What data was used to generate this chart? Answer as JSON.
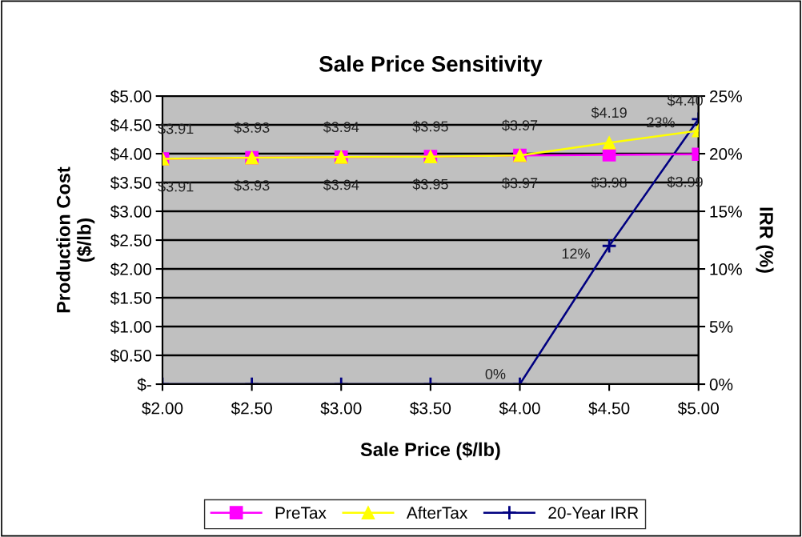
{
  "chart_data": {
    "type": "line",
    "title": "Sale Price Sensitivity",
    "xlabel": "Sale Price ($/lb)",
    "ylabel": "Production Cost\n($/lb)",
    "y2label": "IRR (%)",
    "categories": [
      "$2.00",
      "$2.50",
      "$3.00",
      "$3.50",
      "$4.00",
      "$4.50",
      "$5.00"
    ],
    "series": [
      {
        "name": "PreTax",
        "color": "#ff00ff",
        "marker": "square",
        "values": [
          3.91,
          3.93,
          3.94,
          3.95,
          3.97,
          3.98,
          3.99
        ],
        "value_labels": [
          "$3.91",
          "$3.93",
          "$3.94",
          "$3.95",
          "$3.97",
          "$3.98",
          "$3.99"
        ]
      },
      {
        "name": "AfterTax",
        "color": "#ffff00",
        "marker": "triangle",
        "values": [
          3.91,
          3.93,
          3.94,
          3.95,
          3.97,
          4.19,
          4.4
        ],
        "value_labels": [
          "$3.91",
          "$3.93",
          "$3.94",
          "$3.95",
          "$3.97",
          "$4.19",
          "$4.40"
        ]
      },
      {
        "name": "20-Year IRR",
        "color": "#000080",
        "marker": "cross",
        "axis": "y2",
        "values": [
          0,
          0,
          0,
          0,
          0,
          12,
          23
        ],
        "value_labels": [
          null,
          null,
          null,
          null,
          "0%",
          "12%",
          "23%"
        ]
      }
    ],
    "ylim": [
      0,
      5
    ],
    "yticks": [
      {
        "value": 0,
        "label": "$-"
      },
      {
        "value": 0.5,
        "label": "$0.50"
      },
      {
        "value": 1,
        "label": "$1.00"
      },
      {
        "value": 1.5,
        "label": "$1.50"
      },
      {
        "value": 2,
        "label": "$2.00"
      },
      {
        "value": 2.5,
        "label": "$2.50"
      },
      {
        "value": 3,
        "label": "$3.00"
      },
      {
        "value": 3.5,
        "label": "$3.50"
      },
      {
        "value": 4,
        "label": "$4.00"
      },
      {
        "value": 4.5,
        "label": "$4.50"
      },
      {
        "value": 5,
        "label": "$5.00"
      }
    ],
    "y2lim": [
      0,
      25
    ],
    "y2ticks": [
      {
        "value": 0,
        "label": "0%"
      },
      {
        "value": 5,
        "label": "5%"
      },
      {
        "value": 10,
        "label": "10%"
      },
      {
        "value": 15,
        "label": "15%"
      },
      {
        "value": 20,
        "label": "20%"
      },
      {
        "value": 25,
        "label": "25%"
      }
    ],
    "grid": "y",
    "legend": "bottom"
  }
}
